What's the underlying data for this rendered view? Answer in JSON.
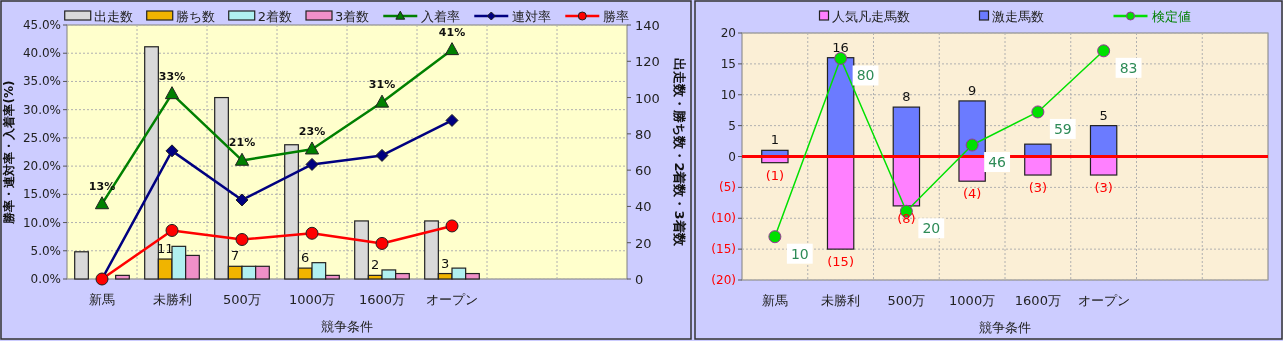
{
  "chart_data": [
    {
      "type": "bar",
      "categories": [
        "新馬",
        "未勝利",
        "500万",
        "1000万",
        "1600万",
        "オープン",
        null,
        null
      ],
      "series": [
        {
          "name": "出走数",
          "type": "bar",
          "axis": "y2",
          "color": "#d9d9d9",
          "values": [
            15,
            128,
            100,
            74,
            32,
            32,
            null,
            null
          ]
        },
        {
          "name": "勝ち数",
          "type": "bar",
          "axis": "y2",
          "color": "#f0b400",
          "values": [
            0,
            11,
            7,
            6,
            2,
            3,
            null,
            null
          ],
          "value_labels": [
            null,
            "11",
            "7",
            "6",
            "2",
            "3",
            null,
            null
          ]
        },
        {
          "name": "2着数",
          "type": "bar",
          "axis": "y2",
          "color": "#b0f0f0",
          "values": [
            0,
            18,
            7,
            9,
            5,
            6,
            null,
            null
          ]
        },
        {
          "name": "3着数",
          "type": "bar",
          "axis": "y2",
          "color": "#f090c8",
          "values": [
            2,
            13,
            7,
            2,
            3,
            3,
            null,
            null
          ]
        },
        {
          "name": "入着率",
          "type": "line",
          "color": "#008000",
          "marker": "triangle",
          "values": [
            13.3,
            32.8,
            21,
            23,
            31.3,
            40.6,
            null,
            null
          ],
          "value_labels": [
            "13%",
            "33%",
            "21%",
            "23%",
            "31%",
            "41%",
            null,
            null
          ]
        },
        {
          "name": "連対率",
          "type": "line",
          "color": "#000080",
          "marker": "diamond",
          "values": [
            0,
            22.7,
            14,
            20.3,
            21.9,
            28.1,
            null,
            null
          ]
        },
        {
          "name": "勝率",
          "type": "line",
          "color": "#ff0000",
          "marker": "circle",
          "values": [
            0,
            8.6,
            7,
            8.1,
            6.3,
            9.4,
            null,
            null
          ]
        }
      ],
      "ylim": [
        0,
        45
      ],
      "yticks": [
        {
          "value": 0,
          "label": "0.0%"
        },
        {
          "value": 5,
          "label": "5.0%"
        },
        {
          "value": 10,
          "label": "10.0%"
        },
        {
          "value": 15,
          "label": "15.0%"
        },
        {
          "value": 20,
          "label": "20.0%"
        },
        {
          "value": 25,
          "label": "25.0%"
        },
        {
          "value": 30,
          "label": "30.0%"
        },
        {
          "value": 35,
          "label": "35.0%"
        },
        {
          "value": 40,
          "label": "40.0%"
        },
        {
          "value": 45,
          "label": "45.0%"
        }
      ],
      "y2lim": [
        0,
        140
      ],
      "y2ticks": [
        0,
        20,
        40,
        60,
        80,
        100,
        120,
        140
      ],
      "ylabel": "勝率・連対率・入着率(%)",
      "y2label": "出走数・勝ち数・2着数・3着数",
      "xlabel": "競争条件",
      "legend": "top",
      "grid": true
    },
    {
      "type": "bar",
      "stacked": true,
      "categories": [
        "新馬",
        "未勝利",
        "500万",
        "1000万",
        "1600万",
        "オープン",
        null,
        null
      ],
      "series": [
        {
          "name": "人気凡走馬数",
          "color": "#ff80ff",
          "values": [
            -1,
            -15,
            -8,
            -4,
            -3,
            -3,
            null,
            null
          ],
          "value_labels": [
            "(1)",
            "(15)",
            "(8)",
            "(4)",
            "(3)",
            "(3)",
            null,
            null
          ]
        },
        {
          "name": "激走馬数",
          "color": "#6b7bff",
          "values": [
            1,
            16,
            8,
            9,
            2,
            5,
            null,
            null
          ],
          "value_labels": [
            "1",
            "16",
            "8",
            "9",
            null,
            "5",
            null,
            null
          ]
        },
        {
          "name": "検定値",
          "type": "line",
          "axis": "y2",
          "color": "#00e000",
          "marker": "circle",
          "values": [
            10,
            80,
            20,
            46,
            59,
            83,
            null,
            null
          ],
          "value_labels": [
            "10",
            "80",
            "20",
            "46",
            "59",
            "83",
            null,
            null
          ]
        }
      ],
      "ylim": [
        -20,
        20
      ],
      "yticks": [
        {
          "value": -20,
          "label": "(20)"
        },
        {
          "value": -15,
          "label": "(15)"
        },
        {
          "value": -10,
          "label": "(10)"
        },
        {
          "value": -5,
          "label": "(5)"
        },
        0,
        5,
        10,
        15,
        20
      ],
      "y2lim": [
        -7,
        90
      ],
      "xlabel": "競争条件",
      "legend": "top",
      "grid": true,
      "ref_lines": [
        {
          "axis": "y",
          "value": 0,
          "color": "#ff0000"
        }
      ]
    }
  ]
}
